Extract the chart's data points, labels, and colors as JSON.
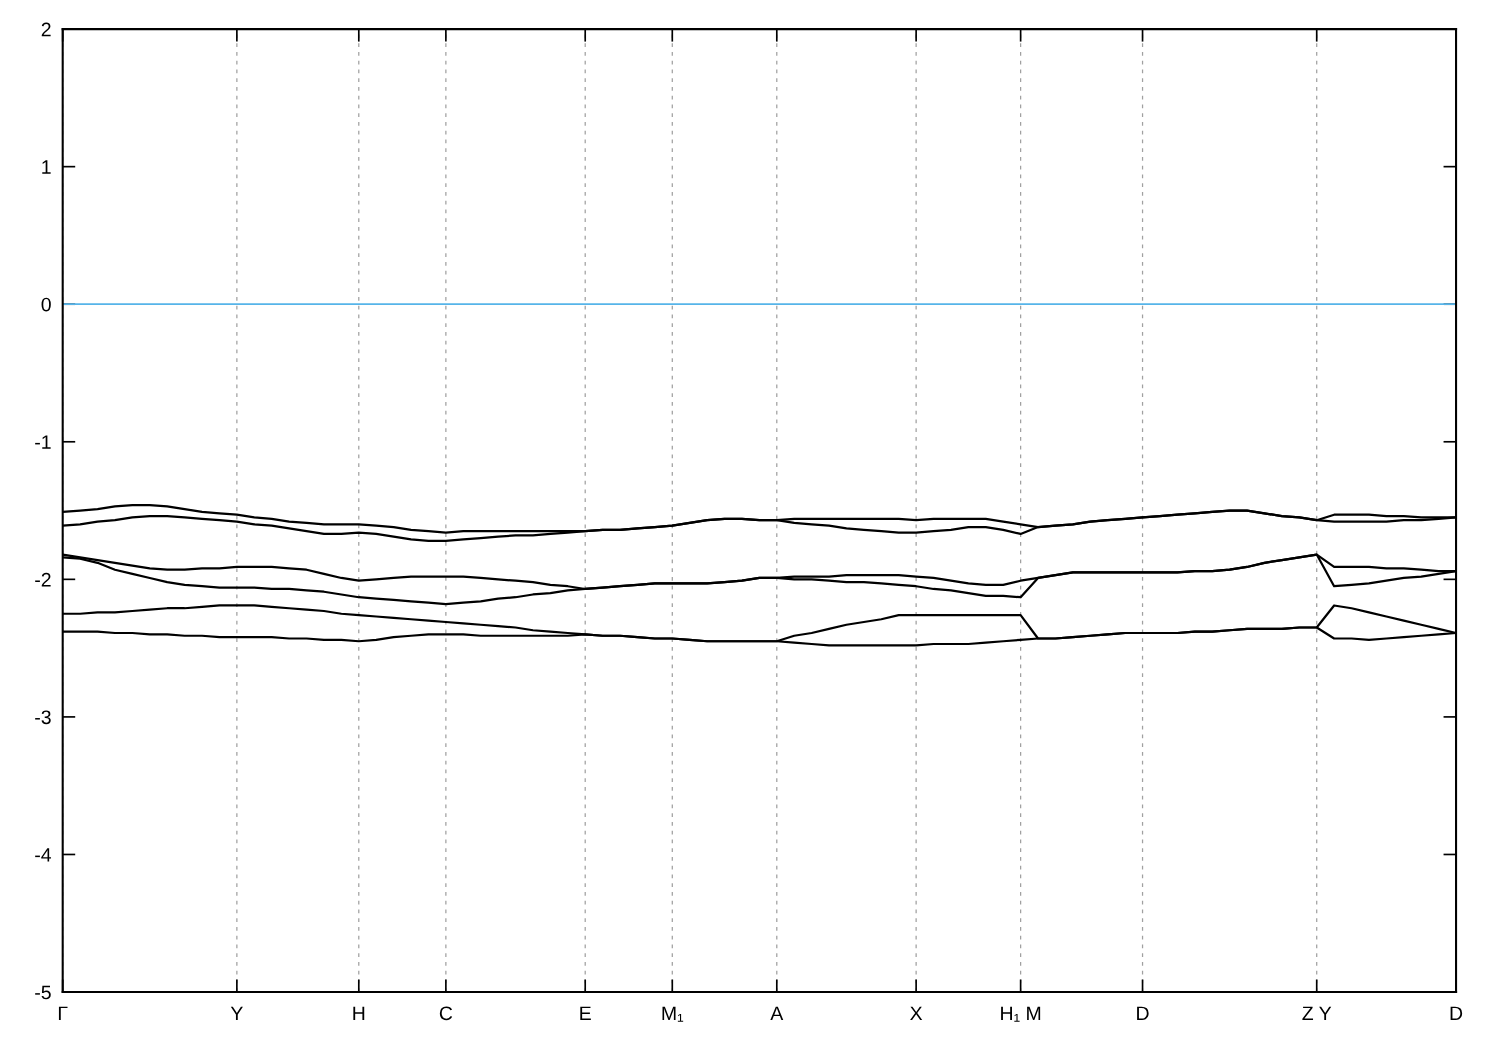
{
  "chart_data": {
    "type": "line",
    "categories": [
      "Γ",
      null,
      null,
      null,
      null,
      null,
      null,
      null,
      null,
      null,
      "Y",
      null,
      null,
      null,
      null,
      null,
      null,
      "H",
      null,
      null,
      null,
      null,
      "C",
      null,
      null,
      null,
      null,
      null,
      null,
      null,
      "E",
      null,
      null,
      null,
      null,
      "M₁",
      null,
      null,
      null,
      null,
      null,
      "A",
      null,
      null,
      null,
      null,
      null,
      null,
      null,
      "X",
      null,
      null,
      null,
      null,
      null,
      "H₁ M",
      null,
      null,
      null,
      null,
      null,
      null,
      "D",
      null,
      null,
      null,
      null,
      null,
      null,
      null,
      null,
      null,
      "Z Y",
      null,
      null,
      null,
      null,
      null,
      null,
      null,
      "D"
    ],
    "ylim": [
      -5,
      2
    ],
    "yticks": [
      -5,
      -4,
      -3,
      -2,
      -1,
      0,
      1,
      2
    ],
    "grid": "x",
    "ref_lines": [
      {
        "axis": "y",
        "value": 0,
        "color": "#56b4e9"
      }
    ],
    "series": [
      {
        "color": "#000000",
        "values": [
          -1.51,
          -1.5,
          -1.49,
          -1.47,
          -1.46,
          -1.46,
          -1.47,
          -1.49,
          -1.51,
          -1.52,
          -1.53,
          -1.55,
          -1.56,
          -1.58,
          -1.59,
          -1.6,
          -1.6,
          -1.6,
          -1.61,
          -1.62,
          -1.64,
          -1.65,
          -1.66,
          -1.65,
          -1.65,
          -1.65,
          -1.65,
          -1.65,
          -1.65,
          -1.65,
          -1.65,
          -1.64,
          -1.64,
          -1.63,
          -1.62,
          -1.61,
          -1.59,
          -1.57,
          -1.56,
          -1.56,
          -1.57,
          -1.57,
          -1.56,
          -1.56,
          -1.56,
          -1.56,
          -1.56,
          -1.56,
          -1.56,
          -1.57,
          -1.56,
          -1.56,
          -1.56,
          -1.56,
          -1.58,
          -1.6,
          -1.62,
          -1.61,
          -1.6,
          -1.58,
          -1.57,
          -1.56,
          -1.55,
          -1.54,
          -1.53,
          -1.52,
          -1.51,
          -1.5,
          -1.5,
          -1.52,
          -1.54,
          -1.55,
          -1.57,
          -1.53,
          -1.53,
          -1.53,
          -1.54,
          -1.54,
          -1.55,
          -1.55,
          -1.55
        ]
      },
      {
        "color": "#000000",
        "values": [
          -1.61,
          -1.6,
          -1.58,
          -1.57,
          -1.55,
          -1.54,
          -1.54,
          -1.55,
          -1.56,
          -1.57,
          -1.58,
          -1.6,
          -1.61,
          -1.63,
          -1.65,
          -1.67,
          -1.67,
          -1.66,
          -1.67,
          -1.69,
          -1.71,
          -1.72,
          -1.72,
          -1.71,
          -1.7,
          -1.69,
          -1.68,
          -1.68,
          -1.67,
          -1.66,
          -1.65,
          -1.64,
          -1.64,
          -1.63,
          -1.62,
          -1.61,
          -1.59,
          -1.57,
          -1.56,
          -1.56,
          -1.57,
          -1.57,
          -1.59,
          -1.6,
          -1.61,
          -1.63,
          -1.64,
          -1.65,
          -1.66,
          -1.66,
          -1.65,
          -1.64,
          -1.62,
          -1.62,
          -1.64,
          -1.67,
          -1.62,
          -1.61,
          -1.6,
          -1.58,
          -1.57,
          -1.56,
          -1.55,
          -1.54,
          -1.53,
          -1.52,
          -1.51,
          -1.5,
          -1.5,
          -1.52,
          -1.54,
          -1.55,
          -1.57,
          -1.58,
          -1.58,
          -1.58,
          -1.58,
          -1.57,
          -1.57,
          -1.56,
          -1.55
        ]
      },
      {
        "color": "#000000",
        "values": [
          -1.82,
          -1.84,
          -1.86,
          -1.88,
          -1.9,
          -1.92,
          -1.93,
          -1.93,
          -1.92,
          -1.92,
          -1.91,
          -1.91,
          -1.91,
          -1.92,
          -1.93,
          -1.96,
          -1.99,
          -2.01,
          -2.0,
          -1.99,
          -1.98,
          -1.98,
          -1.98,
          -1.98,
          -1.99,
          -2.0,
          -2.01,
          -2.02,
          -2.04,
          -2.05,
          -2.07,
          -2.06,
          -2.05,
          -2.04,
          -2.03,
          -2.03,
          -2.03,
          -2.03,
          -2.02,
          -2.01,
          -1.99,
          -1.99,
          -1.98,
          -1.98,
          -1.98,
          -1.97,
          -1.97,
          -1.97,
          -1.97,
          -1.98,
          -1.99,
          -2.01,
          -2.03,
          -2.04,
          -2.04,
          -2.01,
          -1.99,
          -1.97,
          -1.95,
          -1.95,
          -1.95,
          -1.95,
          -1.95,
          -1.95,
          -1.95,
          -1.94,
          -1.94,
          -1.93,
          -1.91,
          -1.88,
          -1.86,
          -1.84,
          -1.82,
          -1.91,
          -1.91,
          -1.91,
          -1.92,
          -1.92,
          -1.93,
          -1.94,
          -1.94
        ]
      },
      {
        "color": "#000000",
        "values": [
          -1.84,
          -1.85,
          -1.88,
          -1.93,
          -1.96,
          -1.99,
          -2.02,
          -2.04,
          -2.05,
          -2.06,
          -2.06,
          -2.06,
          -2.07,
          -2.07,
          -2.08,
          -2.09,
          -2.11,
          -2.13,
          -2.14,
          -2.15,
          -2.16,
          -2.17,
          -2.18,
          -2.17,
          -2.16,
          -2.14,
          -2.13,
          -2.11,
          -2.1,
          -2.08,
          -2.07,
          -2.06,
          -2.05,
          -2.04,
          -2.03,
          -2.03,
          -2.03,
          -2.03,
          -2.02,
          -2.01,
          -1.99,
          -1.99,
          -2.0,
          -2.0,
          -2.01,
          -2.02,
          -2.02,
          -2.03,
          -2.04,
          -2.05,
          -2.07,
          -2.08,
          -2.1,
          -2.12,
          -2.12,
          -2.13,
          -1.99,
          -1.97,
          -1.95,
          -1.95,
          -1.95,
          -1.95,
          -1.95,
          -1.95,
          -1.95,
          -1.94,
          -1.94,
          -1.93,
          -1.91,
          -1.88,
          -1.86,
          -1.84,
          -1.82,
          -2.05,
          -2.04,
          -2.03,
          -2.01,
          -1.99,
          -1.98,
          -1.96,
          -1.94
        ]
      },
      {
        "color": "#000000",
        "values": [
          -2.25,
          -2.25,
          -2.24,
          -2.24,
          -2.23,
          -2.22,
          -2.21,
          -2.21,
          -2.2,
          -2.19,
          -2.19,
          -2.19,
          -2.2,
          -2.21,
          -2.22,
          -2.23,
          -2.25,
          -2.26,
          -2.27,
          -2.28,
          -2.29,
          -2.3,
          -2.31,
          -2.32,
          -2.33,
          -2.34,
          -2.35,
          -2.37,
          -2.38,
          -2.39,
          -2.4,
          -2.41,
          -2.41,
          -2.42,
          -2.43,
          -2.43,
          -2.44,
          -2.45,
          -2.45,
          -2.45,
          -2.45,
          -2.45,
          -2.41,
          -2.39,
          -2.36,
          -2.33,
          -2.31,
          -2.29,
          -2.26,
          -2.26,
          -2.26,
          -2.26,
          -2.26,
          -2.26,
          -2.26,
          -2.26,
          -2.43,
          -2.43,
          -2.42,
          -2.41,
          -2.4,
          -2.39,
          -2.39,
          -2.39,
          -2.39,
          -2.38,
          -2.38,
          -2.37,
          -2.36,
          -2.36,
          -2.36,
          -2.35,
          -2.35,
          -2.19,
          -2.21,
          -2.24,
          -2.27,
          -2.3,
          -2.33,
          -2.36,
          -2.39
        ]
      },
      {
        "color": "#000000",
        "values": [
          -2.38,
          -2.38,
          -2.38,
          -2.39,
          -2.39,
          -2.4,
          -2.4,
          -2.41,
          -2.41,
          -2.42,
          -2.42,
          -2.42,
          -2.42,
          -2.43,
          -2.43,
          -2.44,
          -2.44,
          -2.45,
          -2.44,
          -2.42,
          -2.41,
          -2.4,
          -2.4,
          -2.4,
          -2.41,
          -2.41,
          -2.41,
          -2.41,
          -2.41,
          -2.41,
          -2.4,
          -2.41,
          -2.41,
          -2.42,
          -2.43,
          -2.43,
          -2.44,
          -2.45,
          -2.45,
          -2.45,
          -2.45,
          -2.45,
          -2.46,
          -2.47,
          -2.48,
          -2.48,
          -2.48,
          -2.48,
          -2.48,
          -2.48,
          -2.47,
          -2.47,
          -2.47,
          -2.46,
          -2.45,
          -2.44,
          -2.43,
          -2.43,
          -2.42,
          -2.41,
          -2.4,
          -2.39,
          -2.39,
          -2.39,
          -2.39,
          -2.38,
          -2.38,
          -2.37,
          -2.36,
          -2.36,
          -2.36,
          -2.35,
          -2.35,
          -2.43,
          -2.43,
          -2.44,
          -2.43,
          -2.42,
          -2.41,
          -2.4,
          -2.39
        ]
      }
    ]
  }
}
